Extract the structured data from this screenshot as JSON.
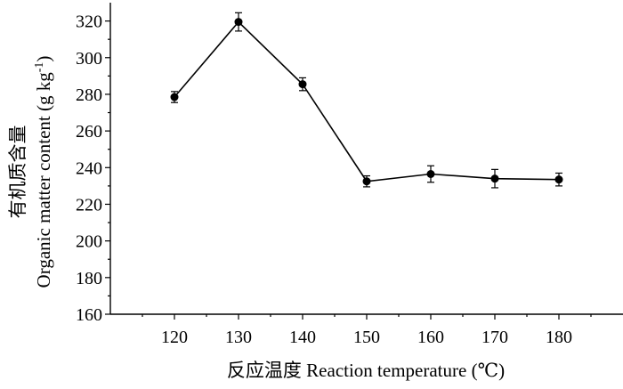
{
  "chart_data": {
    "type": "line",
    "title": "",
    "xlabel": "反应温度 Reaction temperature (℃)",
    "ylabel_cn": "有机质含量",
    "ylabel_en": "Organic matter content (g kg",
    "ylabel_unit_sup": "-1",
    "ylabel_close": ")",
    "x": [
      120,
      130,
      140,
      150,
      160,
      170,
      180
    ],
    "xticks": [
      "120",
      "130",
      "140",
      "150",
      "160",
      "170",
      "180"
    ],
    "xlim": [
      110,
      190
    ],
    "ylim": [
      160,
      330
    ],
    "yticks": [
      "160",
      "180",
      "200",
      "220",
      "240",
      "260",
      "280",
      "300",
      "320"
    ],
    "ytick_values": [
      160,
      180,
      200,
      220,
      240,
      260,
      280,
      300,
      320
    ],
    "series": [
      {
        "values": [
          278.5,
          319.5,
          285.5,
          232.5,
          236.5,
          234.0,
          233.5
        ],
        "errors": [
          3.0,
          5.0,
          3.5,
          3.0,
          4.5,
          5.0,
          3.5
        ]
      }
    ],
    "grid": false,
    "legend": "none"
  }
}
